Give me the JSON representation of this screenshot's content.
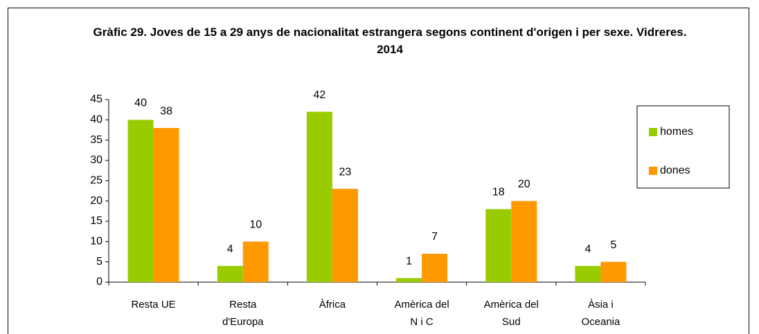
{
  "chart_data": {
    "type": "bar",
    "title": "Gràfic 29. Joves de 15 a 29 anys de nacionalitat estrangera segons continent d'origen i per sexe. Vidreres. 2014",
    "categories": [
      "Resta UE",
      "Resta d'Europa",
      "Àfrica",
      "Amèrica del N i C",
      "Amèrica del Sud",
      "Àsia i Oceania"
    ],
    "series": [
      {
        "name": "homes",
        "color": "#99cc00",
        "values": [
          40,
          4,
          42,
          1,
          18,
          4
        ]
      },
      {
        "name": "dones",
        "color": "#ff9900",
        "values": [
          38,
          10,
          23,
          7,
          20,
          5
        ]
      }
    ],
    "ylim": [
      0,
      45
    ],
    "yticks": [
      0,
      5,
      10,
      15,
      20,
      25,
      30,
      35,
      40,
      45
    ],
    "legend": "right"
  }
}
